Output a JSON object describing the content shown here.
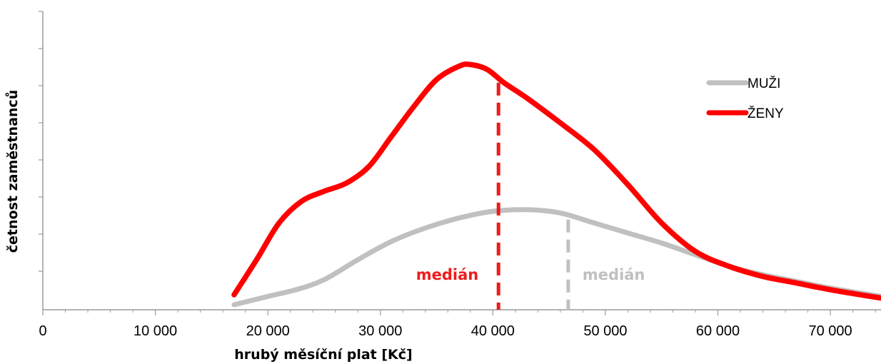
{
  "chart_data": {
    "type": "line",
    "title": "",
    "xlabel": "hrubý měsíční plat [Kč]",
    "ylabel": "četnost zaměstnanců",
    "xlim": [
      0,
      74500
    ],
    "ylim": [
      0,
      8
    ],
    "x_ticks": [
      0,
      10000,
      20000,
      30000,
      40000,
      50000,
      60000,
      70000
    ],
    "x_tick_labels": [
      "0",
      "10 000",
      "20 000",
      "30 000",
      "40 000",
      "50 000",
      "60 000",
      "70 000"
    ],
    "y_tick_labels_shown": false,
    "grid": false,
    "legend_position": "top-right",
    "series": [
      {
        "name": "MUŽI",
        "color": "#c0c0c0",
        "x": [
          17000,
          20000,
          22500,
          25000,
          28000,
          31000,
          34000,
          37000,
          40000,
          43000,
          46000,
          49000,
          52000,
          55000,
          58000,
          61000,
          64000,
          67000,
          70000,
          74500
        ],
        "y": [
          0.15,
          0.4,
          0.6,
          0.9,
          1.5,
          2.05,
          2.45,
          2.75,
          2.95,
          3.0,
          2.9,
          2.6,
          2.3,
          2.0,
          1.65,
          1.3,
          1.05,
          0.85,
          0.65,
          0.4
        ]
      },
      {
        "name": "ŽENY",
        "color": "#ff0000",
        "x": [
          17000,
          19000,
          21000,
          23000,
          25000,
          27000,
          29000,
          31000,
          33000,
          35000,
          37000,
          38000,
          39500,
          41000,
          43000,
          46000,
          49000,
          52000,
          55000,
          58000,
          61000,
          64000,
          67000,
          70000,
          74500
        ],
        "y": [
          0.45,
          1.5,
          2.6,
          3.25,
          3.55,
          3.8,
          4.3,
          5.2,
          6.1,
          6.9,
          7.3,
          7.35,
          7.2,
          6.8,
          6.35,
          5.6,
          4.8,
          3.75,
          2.6,
          1.75,
          1.3,
          1.0,
          0.8,
          0.6,
          0.35
        ]
      }
    ],
    "medians": [
      {
        "series": "ŽENY",
        "x": 40500,
        "label": "medián",
        "color": "#ee1c1c"
      },
      {
        "series": "MUŽI",
        "x": 46700,
        "label": "medián",
        "color": "#c0c0c0"
      }
    ]
  }
}
